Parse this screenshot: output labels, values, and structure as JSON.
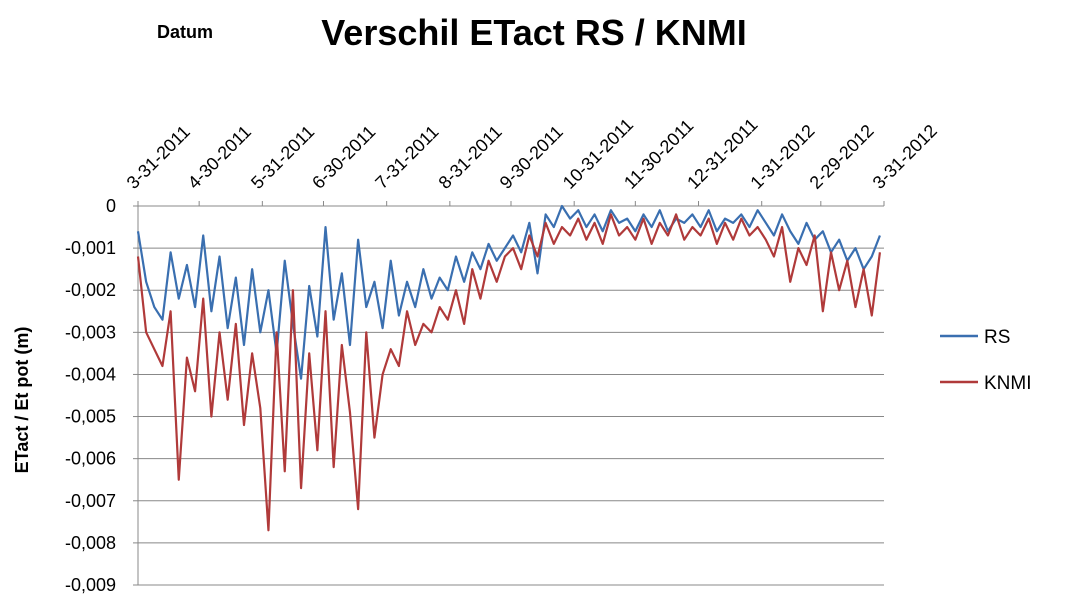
{
  "chart_data": {
    "type": "line",
    "title": "Verschil ETact RS / KNMI",
    "x_label": "Datum",
    "y_label": "ETact / Et pot (m)",
    "x": [
      "2011-03-31",
      "2011-04-04",
      "2011-04-08",
      "2011-04-12",
      "2011-04-16",
      "2011-04-20",
      "2011-04-24",
      "2011-04-28",
      "2011-05-02",
      "2011-05-06",
      "2011-05-10",
      "2011-05-14",
      "2011-05-18",
      "2011-05-22",
      "2011-05-26",
      "2011-05-30",
      "2011-06-03",
      "2011-06-07",
      "2011-06-11",
      "2011-06-15",
      "2011-06-19",
      "2011-06-23",
      "2011-06-27",
      "2011-07-01",
      "2011-07-05",
      "2011-07-09",
      "2011-07-13",
      "2011-07-17",
      "2011-07-21",
      "2011-07-25",
      "2011-07-29",
      "2011-08-02",
      "2011-08-06",
      "2011-08-10",
      "2011-08-14",
      "2011-08-18",
      "2011-08-22",
      "2011-08-26",
      "2011-08-30",
      "2011-09-03",
      "2011-09-07",
      "2011-09-11",
      "2011-09-15",
      "2011-09-19",
      "2011-09-23",
      "2011-09-27",
      "2011-10-01",
      "2011-10-05",
      "2011-10-09",
      "2011-10-13",
      "2011-10-17",
      "2011-10-21",
      "2011-10-25",
      "2011-10-29",
      "2011-11-02",
      "2011-11-06",
      "2011-11-10",
      "2011-11-14",
      "2011-11-18",
      "2011-11-22",
      "2011-11-26",
      "2011-11-30",
      "2011-12-04",
      "2011-12-08",
      "2011-12-12",
      "2011-12-16",
      "2011-12-20",
      "2011-12-24",
      "2011-12-28",
      "2012-01-01",
      "2012-01-05",
      "2012-01-09",
      "2012-01-13",
      "2012-01-17",
      "2012-01-21",
      "2012-01-25",
      "2012-01-29",
      "2012-02-02",
      "2012-02-06",
      "2012-02-10",
      "2012-02-14",
      "2012-02-18",
      "2012-02-22",
      "2012-02-26",
      "2012-03-01",
      "2012-03-05",
      "2012-03-09",
      "2012-03-13",
      "2012-03-17",
      "2012-03-21",
      "2012-03-25",
      "2012-03-29"
    ],
    "series": [
      {
        "name": "RS",
        "color": "#3a6fb0",
        "values": [
          -0.0006,
          -0.0018,
          -0.0024,
          -0.0027,
          -0.0011,
          -0.0022,
          -0.0014,
          -0.0024,
          -0.0007,
          -0.0025,
          -0.0012,
          -0.0029,
          -0.0017,
          -0.0033,
          -0.0015,
          -0.003,
          -0.002,
          -0.0035,
          -0.0013,
          -0.0028,
          -0.0041,
          -0.0019,
          -0.0031,
          -0.0005,
          -0.0027,
          -0.0016,
          -0.0033,
          -0.0008,
          -0.0024,
          -0.0018,
          -0.0029,
          -0.0013,
          -0.0026,
          -0.0018,
          -0.0024,
          -0.0015,
          -0.0022,
          -0.0017,
          -0.002,
          -0.0012,
          -0.0018,
          -0.0011,
          -0.0015,
          -0.0009,
          -0.0013,
          -0.001,
          -0.0007,
          -0.0011,
          -0.0004,
          -0.0016,
          -0.0002,
          -0.0005,
          0,
          -0.0003,
          -0.0001,
          -0.0005,
          -0.0002,
          -0.0006,
          -0.0001,
          -0.0004,
          -0.0003,
          -0.0006,
          -0.0002,
          -0.0005,
          -0.0001,
          -0.0006,
          -0.0003,
          -0.0004,
          -0.0002,
          -0.0005,
          -0.0001,
          -0.0006,
          -0.0003,
          -0.0004,
          -0.0002,
          -0.0005,
          -0.0001,
          -0.0004,
          -0.0007,
          -0.0002,
          -0.0006,
          -0.0009,
          -0.0004,
          -0.0008,
          -0.0006,
          -0.0011,
          -0.0008,
          -0.0013,
          -0.001,
          -0.0015,
          -0.0012,
          -0.0007
        ]
      },
      {
        "name": "KNMI",
        "color": "#b03a3a",
        "values": [
          -0.0012,
          -0.003,
          -0.0034,
          -0.0038,
          -0.0025,
          -0.0065,
          -0.0036,
          -0.0044,
          -0.0022,
          -0.005,
          -0.003,
          -0.0046,
          -0.0028,
          -0.0052,
          -0.0035,
          -0.0048,
          -0.0077,
          -0.003,
          -0.0063,
          -0.002,
          -0.0067,
          -0.0035,
          -0.0058,
          -0.0025,
          -0.0062,
          -0.0033,
          -0.0049,
          -0.0072,
          -0.003,
          -0.0055,
          -0.004,
          -0.0034,
          -0.0038,
          -0.0025,
          -0.0033,
          -0.0028,
          -0.003,
          -0.0024,
          -0.0027,
          -0.002,
          -0.0028,
          -0.0015,
          -0.0022,
          -0.0013,
          -0.0018,
          -0.0012,
          -0.001,
          -0.0015,
          -0.0007,
          -0.0012,
          -0.0004,
          -0.0009,
          -0.0005,
          -0.0007,
          -0.0003,
          -0.0008,
          -0.0004,
          -0.0009,
          -0.0002,
          -0.0007,
          -0.0005,
          -0.0008,
          -0.0003,
          -0.0009,
          -0.0004,
          -0.0007,
          -0.0002,
          -0.0008,
          -0.0005,
          -0.0007,
          -0.0003,
          -0.0009,
          -0.0004,
          -0.0008,
          -0.0003,
          -0.0007,
          -0.0005,
          -0.0008,
          -0.0012,
          -0.0005,
          -0.0018,
          -0.001,
          -0.0014,
          -0.0007,
          -0.0025,
          -0.0011,
          -0.002,
          -0.0013,
          -0.0024,
          -0.0015,
          -0.0026,
          -0.0011
        ]
      }
    ],
    "xlim": [
      "2011-03-31",
      "2012-03-31"
    ],
    "xticks": [
      {
        "value": "2011-03-31",
        "label": "3-31-2011"
      },
      {
        "value": "2011-04-30",
        "label": "4-30-2011"
      },
      {
        "value": "2011-05-31",
        "label": "5-31-2011"
      },
      {
        "value": "2011-06-30",
        "label": "6-30-2011"
      },
      {
        "value": "2011-07-31",
        "label": "7-31-2011"
      },
      {
        "value": "2011-08-31",
        "label": "8-31-2011"
      },
      {
        "value": "2011-09-30",
        "label": "9-30-2011"
      },
      {
        "value": "2011-10-31",
        "label": "10-31-2011"
      },
      {
        "value": "2011-11-30",
        "label": "11-30-2011"
      },
      {
        "value": "2011-12-31",
        "label": "12-31-2011"
      },
      {
        "value": "2012-01-31",
        "label": "1-31-2012"
      },
      {
        "value": "2012-02-29",
        "label": "2-29-2012"
      },
      {
        "value": "2012-03-31",
        "label": "3-31-2012"
      }
    ],
    "ylim": [
      -0.009,
      0
    ],
    "yticks": [
      0,
      {
        "value": -0.001,
        "label": "-0,001"
      },
      {
        "value": -0.002,
        "label": "-0,002"
      },
      {
        "value": -0.003,
        "label": "-0,003"
      },
      {
        "value": -0.004,
        "label": "-0,004"
      },
      {
        "value": -0.005,
        "label": "-0,005"
      },
      {
        "value": -0.006,
        "label": "-0,006"
      },
      {
        "value": -0.007,
        "label": "-0,007"
      },
      {
        "value": -0.008,
        "label": "-0,008"
      },
      {
        "value": -0.009,
        "label": "-0,009"
      }
    ],
    "grid": true,
    "legend": "right"
  }
}
